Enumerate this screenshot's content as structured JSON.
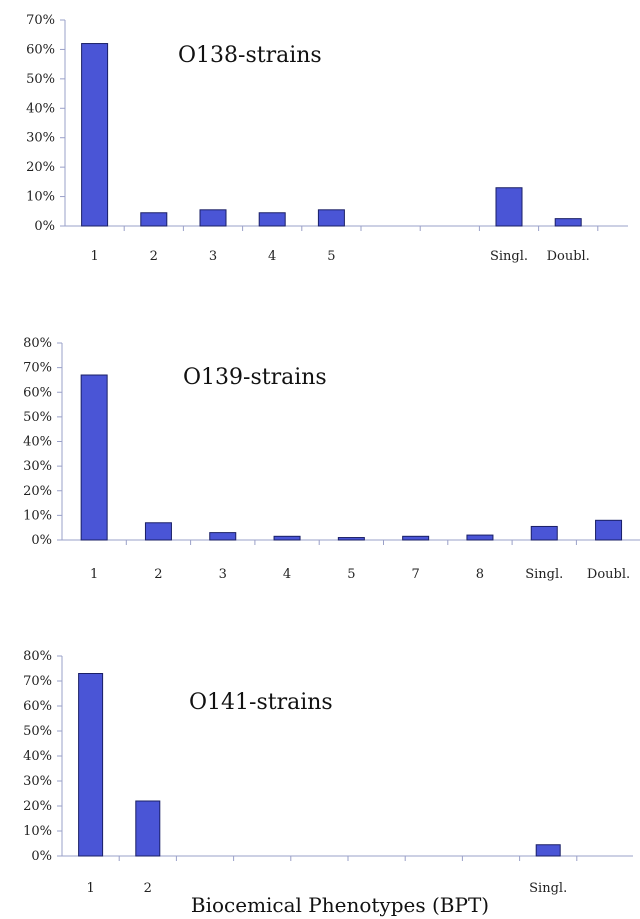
{
  "chart_data": [
    {
      "type": "bar",
      "title": "O138-strains",
      "categories": [
        "1",
        "2",
        "3",
        "4",
        "5",
        "",
        "",
        "Singl.",
        "Doubl."
      ],
      "values": [
        62,
        4.5,
        5.5,
        4.5,
        5.5,
        0,
        0,
        13,
        2.5
      ],
      "ylim": [
        0,
        70
      ],
      "yticks": [
        "0%",
        "10%",
        "20%",
        "30%",
        "40%",
        "50%",
        "60%",
        "70%"
      ],
      "xlabel": "",
      "ylabel": ""
    },
    {
      "type": "bar",
      "title": "O139-strains",
      "categories": [
        "1",
        "2",
        "3",
        "4",
        "5",
        "7",
        "8",
        "Singl.",
        "Doubl."
      ],
      "values": [
        67,
        7,
        3,
        1.5,
        1,
        1.5,
        2,
        5.5,
        8
      ],
      "ylim": [
        0,
        80
      ],
      "yticks": [
        "0%",
        "10%",
        "20%",
        "30%",
        "40%",
        "50%",
        "60%",
        "70%",
        "80%"
      ],
      "xlabel": "",
      "ylabel": ""
    },
    {
      "type": "bar",
      "title": "O141-strains",
      "categories": [
        "1",
        "2",
        "",
        "",
        "",
        "",
        "",
        "",
        "Singl.",
        ""
      ],
      "values": [
        73,
        22,
        0,
        0,
        0,
        0,
        0,
        0,
        4.5,
        0
      ],
      "ylim": [
        0,
        80
      ],
      "yticks": [
        "0%",
        "10%",
        "20%",
        "30%",
        "40%",
        "50%",
        "60%",
        "70%",
        "80%"
      ],
      "xlabel": "Biocemical Phenotypes (BPT)",
      "ylabel": ""
    }
  ]
}
